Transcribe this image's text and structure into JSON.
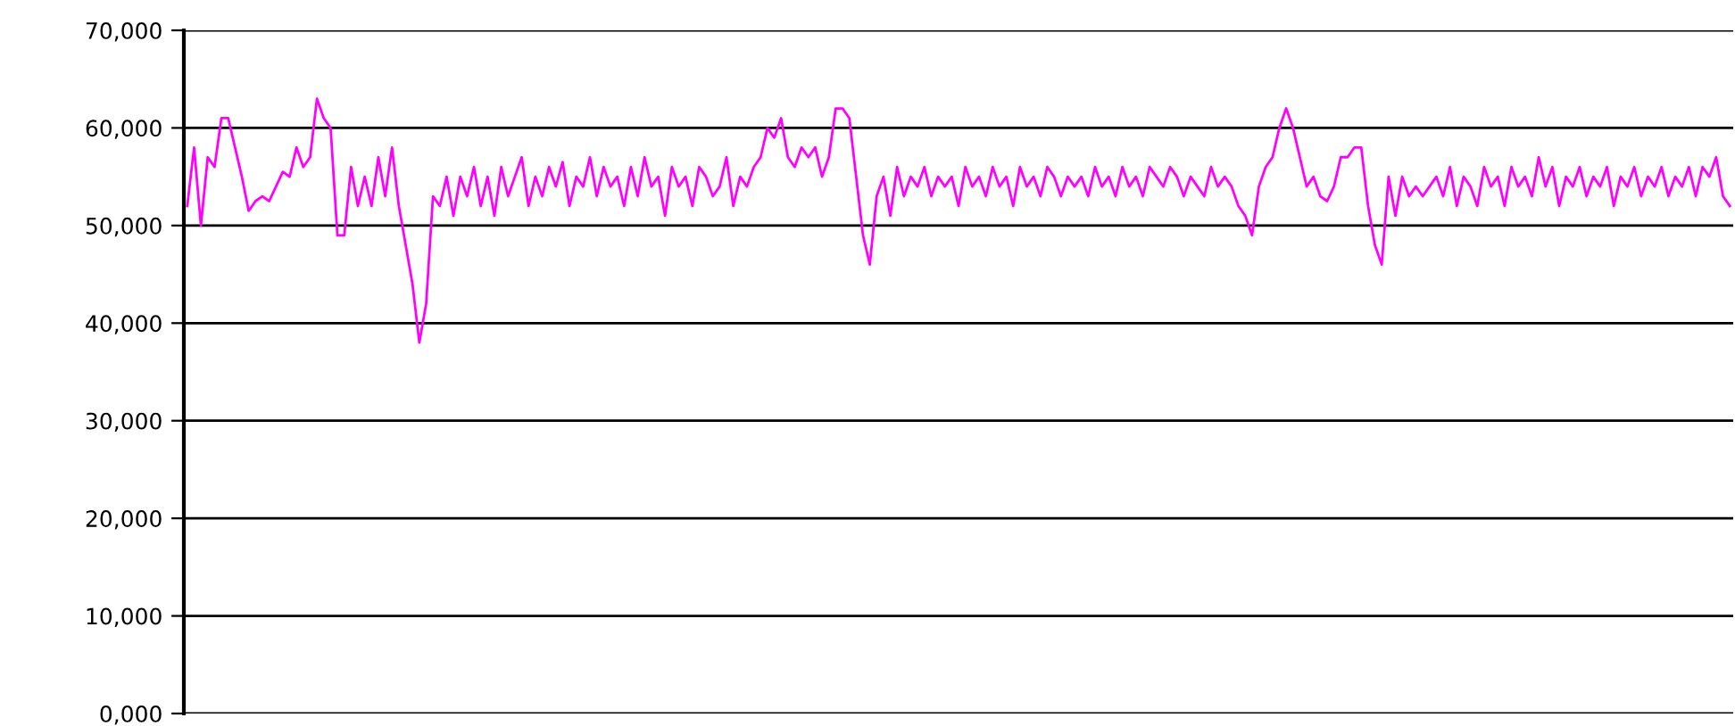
{
  "chart_data": {
    "type": "line",
    "color": "#ff00ff",
    "grid": "y",
    "categories": [
      null,
      null,
      null,
      null,
      null,
      null,
      null,
      null,
      null,
      null,
      null,
      null,
      null,
      null,
      null,
      null,
      null,
      null,
      null,
      null,
      null,
      null,
      null,
      null,
      null,
      null,
      null,
      null,
      null,
      null,
      null,
      null,
      null,
      null,
      null,
      null,
      null,
      null,
      null,
      null,
      null,
      null,
      null,
      null,
      null,
      null,
      null,
      null,
      null,
      null,
      null,
      null,
      null,
      null,
      null,
      null,
      null,
      null,
      null,
      null,
      null,
      null,
      null,
      null,
      null,
      null,
      null,
      null,
      null,
      null,
      null,
      null,
      null,
      null,
      null,
      null,
      null,
      null,
      null,
      null,
      null,
      null,
      null,
      null,
      null,
      null,
      null,
      null,
      null,
      null,
      null,
      null,
      null,
      null,
      null,
      null,
      null,
      null,
      null,
      null,
      null,
      null,
      null,
      null,
      null,
      null,
      null,
      null,
      null,
      null,
      null,
      null,
      null,
      null,
      null,
      null,
      null,
      null,
      null,
      null,
      null,
      null,
      null,
      null,
      null,
      null,
      null,
      null,
      null,
      null,
      null,
      null,
      null,
      null,
      null,
      null,
      null,
      null,
      null,
      null,
      null,
      null,
      null,
      null,
      null,
      null,
      null,
      null,
      null,
      null,
      null,
      null,
      null,
      null,
      null,
      null,
      null,
      null,
      null,
      null,
      null,
      null,
      null,
      null,
      null,
      null,
      null,
      null,
      null,
      null,
      null,
      null,
      null,
      null,
      null,
      null,
      null,
      null,
      null,
      null,
      null,
      null,
      null,
      null,
      null,
      null,
      null,
      null,
      null,
      null,
      null,
      null,
      null,
      null,
      null,
      null,
      null,
      null,
      null,
      null,
      null,
      null,
      null,
      null,
      null,
      null,
      null,
      null,
      null,
      null,
      null,
      null,
      null,
      null,
      null,
      null,
      null,
      null,
      null,
      null,
      null,
      null,
      null,
      null,
      null,
      null,
      null
    ],
    "values": [
      52000,
      58000,
      50000,
      57000,
      56000,
      61000,
      61000,
      58000,
      55000,
      51500,
      52500,
      53000,
      52500,
      54000,
      55500,
      55000,
      58000,
      56000,
      57000,
      63000,
      61000,
      60000,
      49000,
      49000,
      56000,
      52000,
      55000,
      52000,
      57000,
      53000,
      58000,
      52000,
      48000,
      44000,
      38000,
      42000,
      53000,
      52000,
      55000,
      51000,
      55000,
      53000,
      56000,
      52000,
      55000,
      51000,
      56000,
      53000,
      55000,
      57000,
      52000,
      55000,
      53000,
      56000,
      54000,
      56500,
      52000,
      55000,
      54000,
      57000,
      53000,
      56000,
      54000,
      55000,
      52000,
      56000,
      53000,
      57000,
      54000,
      55000,
      51000,
      56000,
      54000,
      55000,
      52000,
      56000,
      55000,
      53000,
      54000,
      57000,
      52000,
      55000,
      54000,
      56000,
      57000,
      60000,
      59000,
      61000,
      57000,
      56000,
      58000,
      57000,
      58000,
      55000,
      57000,
      62000,
      62000,
      61000,
      55000,
      49000,
      46000,
      53000,
      55000,
      51000,
      56000,
      53000,
      55000,
      54000,
      56000,
      53000,
      55000,
      54000,
      55000,
      52000,
      56000,
      54000,
      55000,
      53000,
      56000,
      54000,
      55000,
      52000,
      56000,
      54000,
      55000,
      53000,
      56000,
      55000,
      53000,
      55000,
      54000,
      55000,
      53000,
      56000,
      54000,
      55000,
      53000,
      56000,
      54000,
      55000,
      53000,
      56000,
      55000,
      54000,
      56000,
      55000,
      53000,
      55000,
      54000,
      53000,
      56000,
      54000,
      55000,
      54000,
      52000,
      51000,
      49000,
      54000,
      56000,
      57000,
      60000,
      62000,
      60000,
      57000,
      54000,
      55000,
      53000,
      52500,
      54000,
      57000,
      57000,
      58000,
      58000,
      52000,
      48000,
      46000,
      55000,
      51000,
      55000,
      53000,
      54000,
      53000,
      54000,
      55000,
      53000,
      56000,
      52000,
      55000,
      54000,
      52000,
      56000,
      54000,
      55000,
      52000,
      56000,
      54000,
      55000,
      53000,
      57000,
      54000,
      56000,
      52000,
      55000,
      54000,
      56000,
      53000,
      55000,
      54000,
      56000,
      52000,
      55000,
      54000,
      56000,
      53000,
      55000,
      54000,
      56000,
      53000,
      55000,
      54000,
      56000,
      53000,
      56000,
      55000,
      57000,
      53000,
      52000
    ],
    "ylim": [
      0,
      70000
    ],
    "yticks": [
      {
        "value": 0,
        "label": "0,000"
      },
      {
        "value": 10000,
        "label": "10,000"
      },
      {
        "value": 20000,
        "label": "20,000"
      },
      {
        "value": 30000,
        "label": "30,000"
      },
      {
        "value": 40000,
        "label": "40,000"
      },
      {
        "value": 50000,
        "label": "50,000"
      },
      {
        "value": 60000,
        "label": "60,000"
      },
      {
        "value": 70000,
        "label": "70,000"
      }
    ],
    "tick_labels": "y"
  }
}
